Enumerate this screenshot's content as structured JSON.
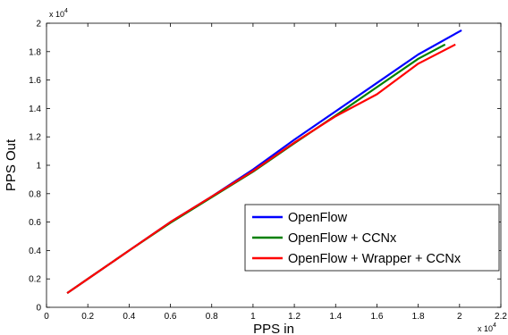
{
  "chart_data": {
    "type": "line",
    "title": "",
    "xlabel": "PPS in",
    "ylabel": "PPS Out",
    "x_exponent_label": "x 10",
    "x_exponent_power": "4",
    "y_exponent_label": "x 10",
    "y_exponent_power": "4",
    "xlim": [
      0,
      22000
    ],
    "ylim": [
      0,
      20000
    ],
    "xticks": [
      0,
      2000,
      4000,
      6000,
      8000,
      10000,
      12000,
      14000,
      16000,
      18000,
      20000,
      22000
    ],
    "yticks": [
      0,
      2000,
      4000,
      6000,
      8000,
      10000,
      12000,
      14000,
      16000,
      18000,
      20000
    ],
    "xtick_labels": [
      "0",
      "0.2",
      "0.4",
      "0.6",
      "0.8",
      "1",
      "1.2",
      "1.4",
      "1.6",
      "1.8",
      "2",
      "2.2"
    ],
    "ytick_labels": [
      "0",
      "0.2",
      "0.4",
      "0.6",
      "0.8",
      "1",
      "1.2",
      "1.4",
      "1.6",
      "1.8",
      "2"
    ],
    "grid": false,
    "legend_position": "lower-right",
    "series": [
      {
        "name": "OpenFlow",
        "color": "#0000ff",
        "points": [
          [
            1000,
            1000
          ],
          [
            2000,
            2000
          ],
          [
            4000,
            4000
          ],
          [
            6000,
            6000
          ],
          [
            8000,
            7800
          ],
          [
            10000,
            9700
          ],
          [
            12000,
            11800
          ],
          [
            14000,
            13800
          ],
          [
            16000,
            15800
          ],
          [
            18000,
            17800
          ],
          [
            20100,
            19500
          ]
        ]
      },
      {
        "name": "OpenFlow + CCNx",
        "color": "#008000",
        "points": [
          [
            1000,
            1000
          ],
          [
            2000,
            2000
          ],
          [
            4000,
            4000
          ],
          [
            6000,
            5950
          ],
          [
            8000,
            7750
          ],
          [
            10000,
            9550
          ],
          [
            12000,
            11550
          ],
          [
            14000,
            13500
          ],
          [
            16000,
            15500
          ],
          [
            18000,
            17500
          ],
          [
            19300,
            18500
          ]
        ]
      },
      {
        "name": "OpenFlow + Wrapper + CCNx",
        "color": "#ff0000",
        "points": [
          [
            1000,
            1000
          ],
          [
            2000,
            2000
          ],
          [
            4000,
            4000
          ],
          [
            6000,
            6000
          ],
          [
            8000,
            7800
          ],
          [
            10000,
            9600
          ],
          [
            12000,
            11600
          ],
          [
            14000,
            13450
          ],
          [
            16000,
            15000
          ],
          [
            18000,
            17150
          ],
          [
            19800,
            18500
          ]
        ]
      }
    ]
  }
}
